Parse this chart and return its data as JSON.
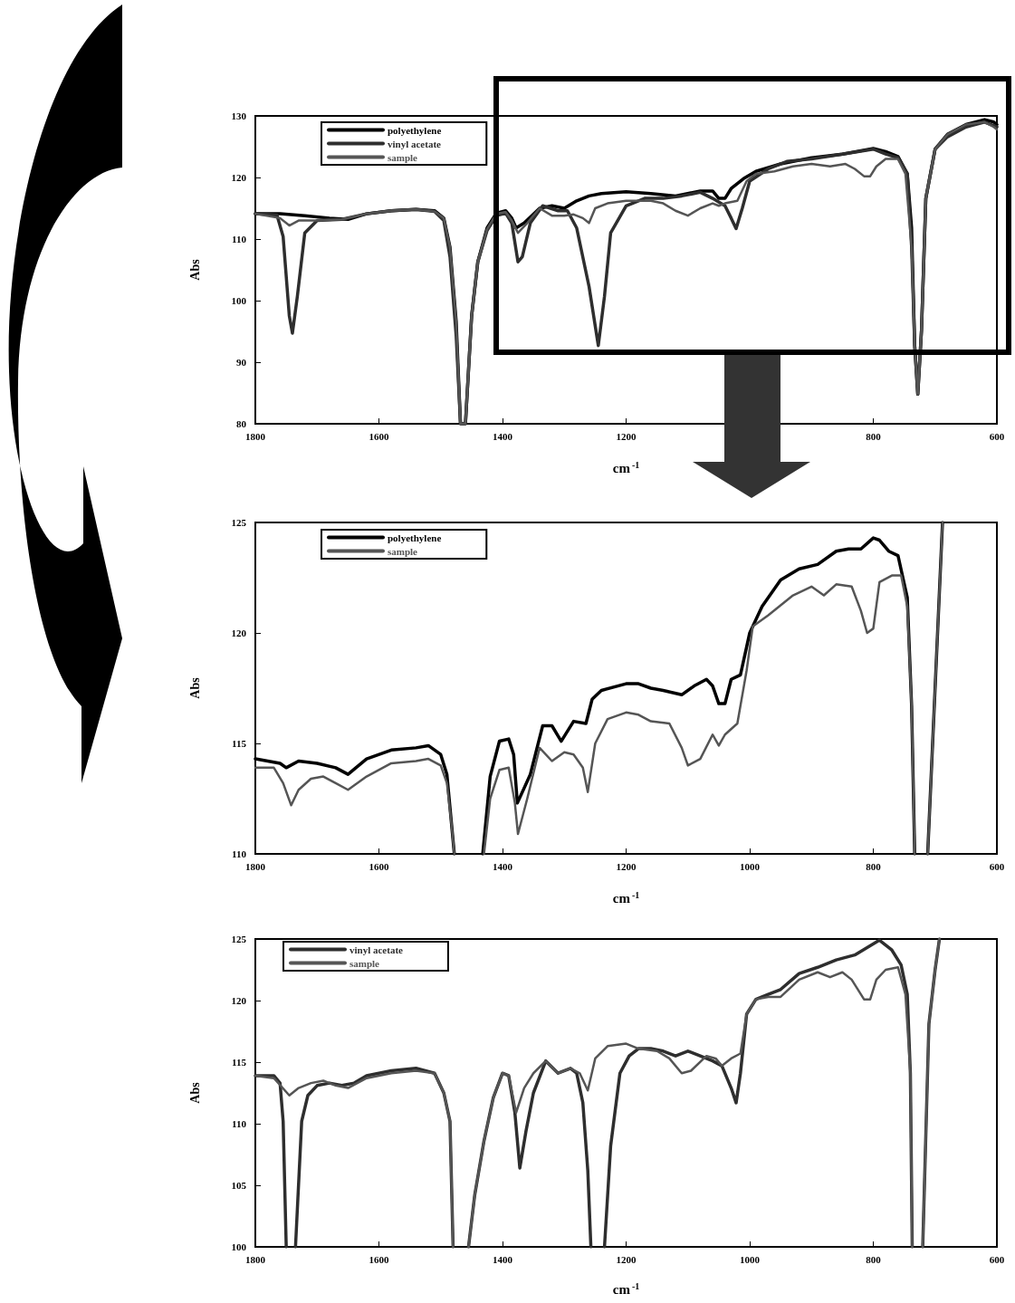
{
  "chart_data": [
    {
      "type": "line",
      "xlabel": "cm$^{-1}$",
      "ylabel": "Abs",
      "xlim": [
        1800,
        600
      ],
      "ylim": [
        80,
        130
      ],
      "yticks": [
        80,
        90,
        100,
        110,
        120,
        130
      ],
      "xticks": [
        1800,
        1600,
        1400,
        1200,
        800,
        600
      ],
      "legend": "top left",
      "marker": "none",
      "line_style": "solid",
      "grid": false,
      "series": [
        {
          "name": "polyethylene",
          "color": "#000000",
          "x": [
            1800,
            1760,
            1720,
            1680,
            1650,
            1620,
            1580,
            1540,
            1510,
            1495,
            1485,
            1475,
            1468,
            1460,
            1450,
            1440,
            1425,
            1410,
            1395,
            1385,
            1378,
            1365,
            1340,
            1320,
            1300,
            1280,
            1260,
            1240,
            1200,
            1160,
            1120,
            1080,
            1060,
            1050,
            1040,
            1030,
            1010,
            990,
            950,
            900,
            850,
            800,
            780,
            760,
            745,
            738,
            733,
            728,
            722,
            715,
            700,
            680,
            650,
            620,
            605,
            600
          ],
          "values": [
            114.1,
            114.1,
            113.8,
            113.4,
            113.2,
            114.1,
            114.6,
            114.8,
            114.6,
            113.4,
            108.7,
            96.7,
            80,
            80,
            97.5,
            106.3,
            111.8,
            114.2,
            114.6,
            113.4,
            111.8,
            112.6,
            115,
            115.4,
            115,
            116.2,
            117,
            117.4,
            117.7,
            117.4,
            117,
            117.8,
            117.8,
            116.6,
            116.6,
            118.2,
            119.8,
            121,
            122.2,
            123.2,
            123.8,
            124.7,
            124.2,
            123.4,
            120.6,
            111.8,
            92.7,
            84.8,
            95.2,
            116.6,
            124.6,
            127,
            128.6,
            129.4,
            129,
            128.6
          ]
        },
        {
          "name": "vinyl acetate",
          "color": "#2e2e2e",
          "x": [
            1800,
            1765,
            1755,
            1745,
            1740,
            1732,
            1720,
            1700,
            1660,
            1620,
            1580,
            1540,
            1510,
            1495,
            1485,
            1475,
            1468,
            1460,
            1450,
            1440,
            1425,
            1410,
            1395,
            1385,
            1375,
            1368,
            1355,
            1335,
            1310,
            1295,
            1280,
            1260,
            1245,
            1235,
            1225,
            1200,
            1170,
            1140,
            1110,
            1080,
            1060,
            1040,
            1030,
            1022,
            1012,
            1000,
            970,
            940,
            900,
            850,
            800,
            780,
            760,
            745,
            738,
            733,
            728,
            722,
            715,
            700,
            680,
            650,
            620,
            600
          ],
          "values": [
            114.1,
            113.9,
            110.4,
            97.5,
            94.7,
            100.7,
            111,
            113,
            113.2,
            114.1,
            114.6,
            114.8,
            114.5,
            113,
            107.1,
            94.3,
            80,
            80,
            97.5,
            106.3,
            111.4,
            113.8,
            114.2,
            112.6,
            106.3,
            107.1,
            112.6,
            115.4,
            114.6,
            114.6,
            111.8,
            102.3,
            92.7,
            100.7,
            111,
            115.4,
            116.6,
            116.6,
            117,
            117.6,
            116.6,
            115.4,
            113.4,
            111.7,
            115,
            119.4,
            121.4,
            122.6,
            123,
            123.8,
            124.6,
            123.8,
            123.2,
            120.6,
            108.7,
            92.7,
            84.8,
            95.2,
            116.6,
            124.6,
            126.6,
            128.2,
            129,
            128.2
          ]
        },
        {
          "name": "sample",
          "color": "#555555",
          "x": [
            1800,
            1760,
            1745,
            1730,
            1700,
            1660,
            1620,
            1580,
            1540,
            1510,
            1495,
            1485,
            1475,
            1468,
            1460,
            1450,
            1440,
            1425,
            1410,
            1395,
            1385,
            1375,
            1360,
            1340,
            1320,
            1300,
            1285,
            1270,
            1260,
            1250,
            1230,
            1200,
            1160,
            1140,
            1120,
            1100,
            1080,
            1060,
            1050,
            1040,
            1020,
            1005,
            990,
            960,
            930,
            900,
            870,
            845,
            830,
            815,
            805,
            795,
            780,
            760,
            748,
            738,
            733,
            728,
            722,
            715,
            700,
            680,
            650,
            620,
            605,
            600
          ],
          "values": [
            114.1,
            113.4,
            112.2,
            113,
            113,
            113.2,
            114.1,
            114.6,
            114.8,
            114.5,
            113.4,
            108.7,
            96.7,
            80,
            80,
            97.5,
            106.3,
            111.6,
            114.1,
            114.4,
            113,
            111,
            112.6,
            115,
            113.8,
            113.8,
            114,
            113.4,
            112.6,
            115,
            115.8,
            116.2,
            116.2,
            115.8,
            114.6,
            113.8,
            115,
            115.8,
            115.4,
            115.8,
            116.2,
            119.4,
            120.6,
            121,
            121.8,
            122.2,
            121.8,
            122.2,
            121.4,
            120.2,
            120.2,
            121.8,
            123,
            123,
            120.6,
            108.7,
            92.7,
            84.8,
            95.2,
            116.6,
            124.6,
            127,
            128.6,
            129,
            128.2,
            127.8
          ]
        }
      ]
    },
    {
      "type": "line",
      "xlabel": "cm$^{-1}$",
      "ylabel": "Abs",
      "xlim": [
        1800,
        600
      ],
      "xticks": [
        1800,
        1600,
        1400,
        1200,
        1000,
        800,
        600
      ],
      "ylim": [
        110,
        125
      ],
      "yticks": [
        110,
        115,
        120,
        125
      ],
      "legend": "top left",
      "marker": "none",
      "line_style": "solid",
      "grid": false,
      "series": [
        {
          "name": "polyethylene",
          "color": "#000000",
          "x": [
            1800,
            1760,
            1750,
            1730,
            1700,
            1670,
            1650,
            1620,
            1580,
            1540,
            1520,
            1500,
            1490,
            1482,
            1478,
            1455,
            1432,
            1420,
            1405,
            1390,
            1382,
            1376,
            1355,
            1335,
            1320,
            1305,
            1285,
            1265,
            1255,
            1240,
            1200,
            1180,
            1160,
            1140,
            1110,
            1090,
            1070,
            1060,
            1050,
            1040,
            1030,
            1015,
            1000,
            980,
            950,
            920,
            890,
            860,
            840,
            820,
            800,
            790,
            775,
            760,
            745,
            738,
            733,
            722,
            712,
            688
          ],
          "values": [
            114.3,
            114.1,
            113.9,
            114.2,
            114.1,
            113.9,
            113.6,
            114.3,
            114.7,
            114.8,
            114.9,
            114.5,
            113.6,
            111.2,
            110,
            null,
            110,
            113.5,
            115.1,
            115.2,
            114.5,
            112.3,
            113.6,
            115.8,
            115.8,
            115.1,
            116,
            115.9,
            117,
            117.4,
            117.7,
            117.7,
            117.5,
            117.4,
            117.2,
            117.6,
            117.9,
            117.6,
            116.8,
            116.8,
            117.9,
            118.1,
            120,
            121.2,
            122.4,
            122.9,
            123.1,
            123.7,
            123.8,
            123.8,
            124.3,
            124.2,
            123.7,
            123.5,
            121.6,
            116.7,
            110,
            null,
            110,
            125
          ]
        },
        {
          "name": "sample",
          "color": "#555555",
          "x": [
            1800,
            1770,
            1755,
            1742,
            1730,
            1710,
            1690,
            1670,
            1650,
            1620,
            1580,
            1540,
            1520,
            1500,
            1490,
            1482,
            1478,
            1455,
            1430,
            1420,
            1405,
            1390,
            1380,
            1375,
            1360,
            1340,
            1320,
            1300,
            1285,
            1270,
            1262,
            1250,
            1230,
            1200,
            1180,
            1160,
            1130,
            1110,
            1100,
            1080,
            1060,
            1050,
            1040,
            1020,
            1005,
            995,
            970,
            930,
            900,
            880,
            860,
            835,
            820,
            810,
            800,
            790,
            770,
            755,
            745,
            738,
            733,
            722,
            712,
            688
          ],
          "values": [
            113.9,
            113.9,
            113.2,
            112.2,
            112.9,
            113.4,
            113.5,
            113.2,
            112.9,
            113.5,
            114.1,
            114.2,
            114.3,
            114,
            113.2,
            111.2,
            110,
            null,
            110,
            112.5,
            113.8,
            113.9,
            112.3,
            110.9,
            112.5,
            114.8,
            114.2,
            114.6,
            114.5,
            113.9,
            112.8,
            115,
            116.1,
            116.4,
            116.3,
            116,
            115.9,
            114.8,
            114,
            114.3,
            115.4,
            114.9,
            115.4,
            115.9,
            118.3,
            120.3,
            120.8,
            121.7,
            122.1,
            121.7,
            122.2,
            122.1,
            121,
            120,
            120.2,
            122.3,
            122.6,
            122.6,
            121.2,
            116.7,
            110,
            null,
            110,
            125
          ]
        }
      ]
    },
    {
      "type": "line",
      "xlabel": "cm$^{-1}$",
      "ylabel": "Abs",
      "xlim": [
        1800,
        600
      ],
      "xticks": [
        1800,
        1600,
        1400,
        1200,
        1000,
        800,
        600
      ],
      "ylim": [
        100,
        125
      ],
      "yticks": [
        100,
        105,
        110,
        115,
        120,
        125
      ],
      "legend": "top left",
      "marker": "none",
      "line_style": "solid",
      "grid": false,
      "series": [
        {
          "name": "vinyl acetate",
          "color": "#2e2e2e",
          "x": [
            1800,
            1770,
            1760,
            1755,
            1750,
            1742,
            1735,
            1725,
            1715,
            1700,
            1680,
            1660,
            1640,
            1620,
            1580,
            1540,
            1510,
            1495,
            1485,
            1480,
            1468,
            1455,
            1445,
            1430,
            1415,
            1400,
            1390,
            1380,
            1372,
            1362,
            1350,
            1330,
            1310,
            1290,
            1280,
            1270,
            1262,
            1257,
            1246,
            1235,
            1225,
            1210,
            1195,
            1180,
            1160,
            1140,
            1120,
            1100,
            1080,
            1060,
            1045,
            1030,
            1022,
            1015,
            1005,
            990,
            970,
            950,
            920,
            890,
            860,
            830,
            810,
            790,
            770,
            755,
            745,
            740,
            737,
            728,
            720,
            710,
            700,
            693
          ],
          "values": [
            113.9,
            113.9,
            113.3,
            110.2,
            100,
            null,
            100,
            110.2,
            112.3,
            113.1,
            113.3,
            113.1,
            113.3,
            113.9,
            114.3,
            114.5,
            114.1,
            112.5,
            110.2,
            100,
            null,
            100,
            104.2,
            108.6,
            112.1,
            114.1,
            113.9,
            110.9,
            106.4,
            109.4,
            112.5,
            115.1,
            114.1,
            114.5,
            114.1,
            111.7,
            106.2,
            100,
            null,
            100,
            108.2,
            114.1,
            115.5,
            116.1,
            116.1,
            115.9,
            115.5,
            115.9,
            115.5,
            115.1,
            114.7,
            112.9,
            111.7,
            114.1,
            118.9,
            120.1,
            120.5,
            120.9,
            122.2,
            122.7,
            123.3,
            123.7,
            124.3,
            124.9,
            124.1,
            122.9,
            120.5,
            114.1,
            100,
            null,
            100,
            118.1,
            122.5,
            125
          ]
        },
        {
          "name": "sample",
          "color": "#555555",
          "x": [
            1800,
            1770,
            1745,
            1730,
            1710,
            1690,
            1670,
            1650,
            1620,
            1580,
            1540,
            1510,
            1495,
            1485,
            1480,
            1468,
            1455,
            1445,
            1430,
            1415,
            1400,
            1390,
            1378,
            1365,
            1350,
            1330,
            1310,
            1290,
            1275,
            1262,
            1250,
            1230,
            1200,
            1180,
            1150,
            1130,
            1110,
            1095,
            1070,
            1055,
            1045,
            1030,
            1015,
            1005,
            990,
            970,
            950,
            920,
            890,
            870,
            850,
            835,
            815,
            805,
            795,
            780,
            760,
            748,
            740,
            737,
            728,
            720,
            710,
            700,
            693
          ],
          "values": [
            113.9,
            113.7,
            112.3,
            112.9,
            113.3,
            113.5,
            113.1,
            112.9,
            113.7,
            114.1,
            114.3,
            114.1,
            112.5,
            110.2,
            100,
            null,
            100,
            104.2,
            108.6,
            112.1,
            114.1,
            113.9,
            110.9,
            112.9,
            114.1,
            115.1,
            114.1,
            114.5,
            114.1,
            112.7,
            115.3,
            116.3,
            116.5,
            116.1,
            115.9,
            115.3,
            114.1,
            114.3,
            115.5,
            115.3,
            114.7,
            115.3,
            115.7,
            118.9,
            120.1,
            120.3,
            120.3,
            121.7,
            122.3,
            121.9,
            122.3,
            121.7,
            120.1,
            120.1,
            121.7,
            122.5,
            122.7,
            120.5,
            114.1,
            100,
            null,
            100,
            118.1,
            122.5,
            125
          ]
        }
      ]
    }
  ]
}
